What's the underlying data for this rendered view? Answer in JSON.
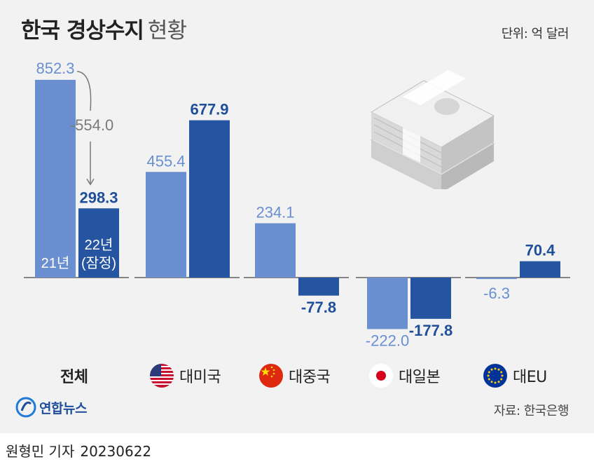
{
  "title": {
    "bold": "한국 경상수지",
    "light": "현황"
  },
  "unit_label": "단위: 억 달러",
  "colors": {
    "bar_2021": "#6a8fd0",
    "bar_2022": "#2554a0",
    "label_dark": "#1f4e9a",
    "panel_bg": "#f2f2f2"
  },
  "chart_data": {
    "type": "bar",
    "title": "한국 경상수지 현황",
    "unit": "억 달러",
    "categories": [
      "전체",
      "대미국",
      "대중국",
      "대일본",
      "대EU"
    ],
    "series": [
      {
        "name": "21년",
        "values": [
          852.3,
          455.4,
          234.1,
          -222.0,
          -6.3
        ]
      },
      {
        "name": "22년 (잠정)",
        "values": [
          298.3,
          677.9,
          -77.8,
          -177.8,
          70.4
        ]
      }
    ],
    "value_labels": {
      "s2021": [
        "852.3",
        "455.4",
        "234.1",
        "-222.0",
        "-6.3"
      ],
      "s2022": [
        "298.3",
        "677.9",
        "-77.8",
        "-177.8",
        "70.4"
      ]
    },
    "series_labels_in_bar": {
      "s2021": "21년",
      "s2022_line1": "22년",
      "s2022_line2": "(잠정)"
    },
    "annotation": {
      "text": "-554.0",
      "from_value": 852.3,
      "to_value": 298.3
    },
    "ylim": [
      -230,
      900
    ]
  },
  "legend": [
    {
      "label": "전체",
      "icon": "none"
    },
    {
      "label": "대미국",
      "icon": "us-flag-icon"
    },
    {
      "label": "대중국",
      "icon": "china-flag-icon"
    },
    {
      "label": "대일본",
      "icon": "japan-flag-icon"
    },
    {
      "label": "대EU",
      "icon": "eu-flag-icon"
    }
  ],
  "logo": {
    "text": "연합뉴스",
    "icon": "yonhap-logo-icon"
  },
  "source": "자료: 한국은행",
  "footer": {
    "reporter": "원형민 기자",
    "date": "20230622"
  }
}
